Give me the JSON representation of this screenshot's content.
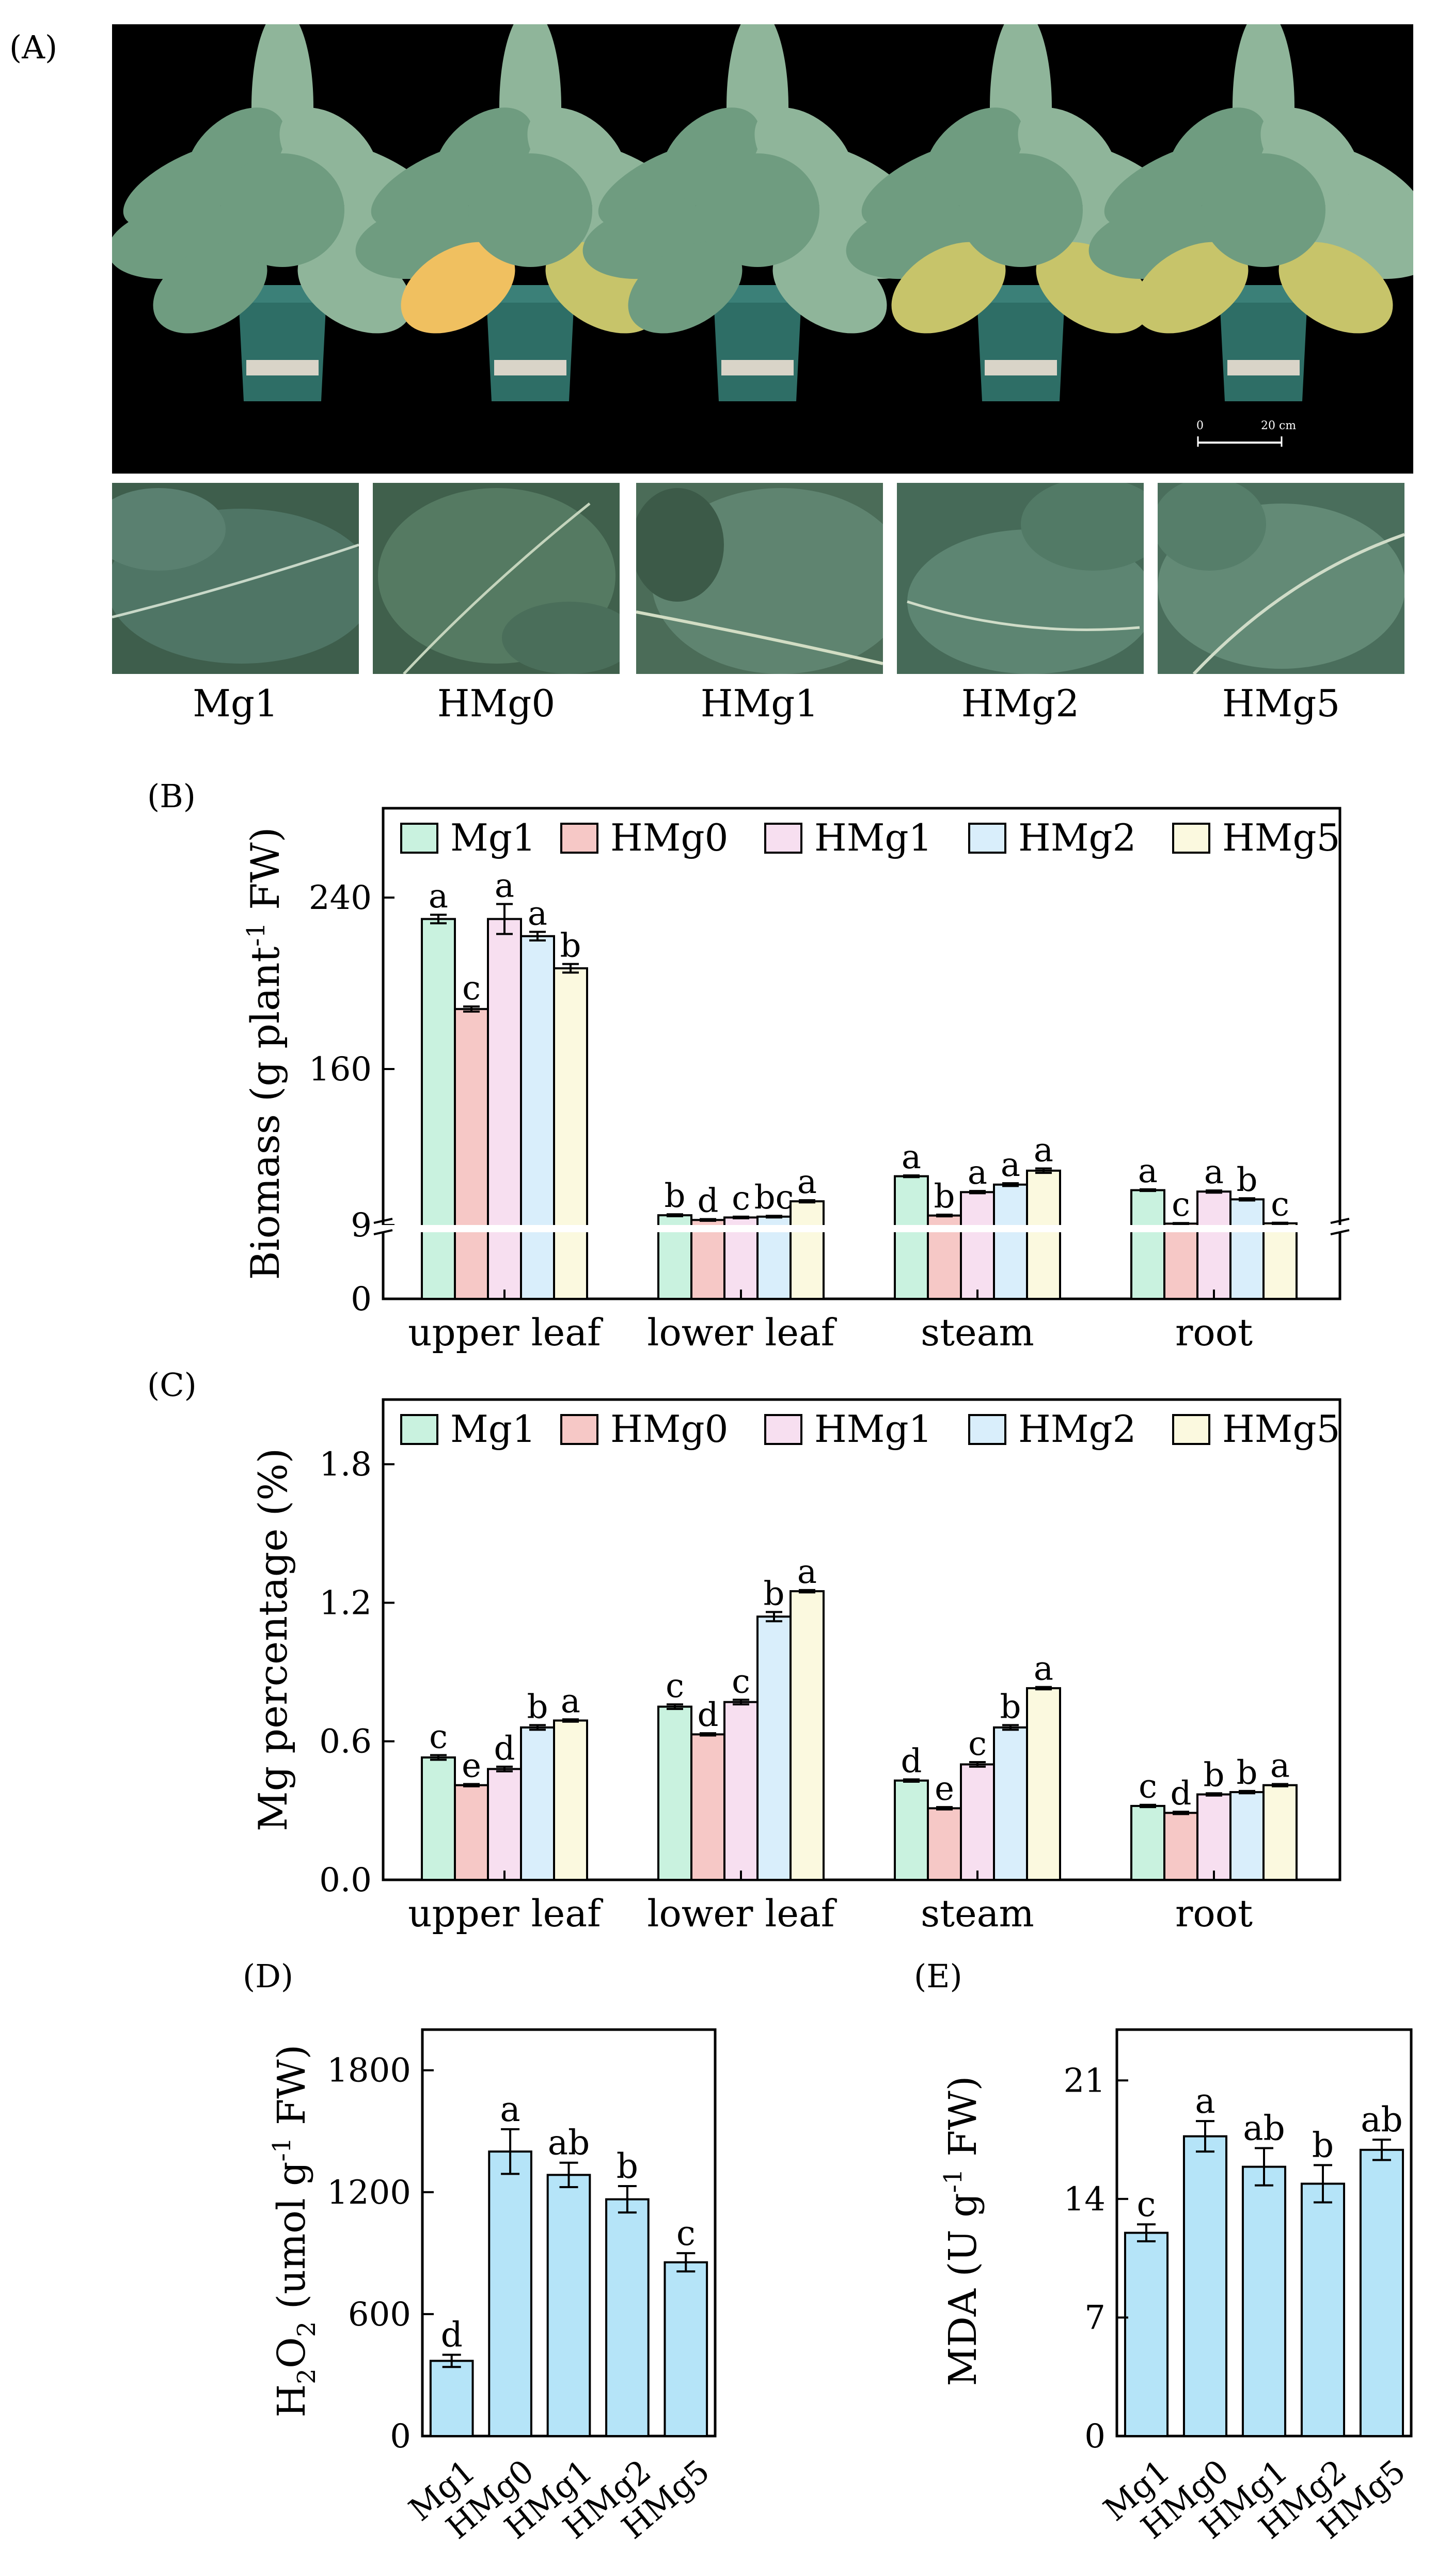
{
  "panel_labels": {
    "a": "(A)",
    "b": "(B)",
    "c": "(C)",
    "d": "(D)",
    "e": "(E)"
  },
  "photo": {
    "scale_start": "0",
    "scale_end": "20 cm",
    "labels": [
      "Mg1",
      "HMg0",
      "HMg1",
      "HMg2",
      "HMg5"
    ]
  },
  "series_colors": {
    "Mg1": "#c9f2df",
    "HMg0": "#f6c8c6",
    "HMg1": "#f7dff0",
    "HMg2": "#d9eefb",
    "HMg5": "#fbf9df",
    "bar_blue": "#b5e4f8"
  },
  "chart_data": [
    {
      "type": "bar",
      "panel": "(B)",
      "categories": [
        "upper leaf",
        "lower leaf",
        "steam",
        "root"
      ],
      "ylabel": "Biomass (g plant",
      "ylabel_sup": "-1",
      "ylabel_tail": " FW)",
      "yticks": [
        "0",
        "9",
        "160",
        "240"
      ],
      "broken_axis": true,
      "series": [
        {
          "name": "Mg1",
          "values": [
            230,
            12.5,
            26.5,
            21.5
          ],
          "errors": [
            2,
            0.35,
            0.3,
            0.3
          ],
          "letters": [
            "a",
            "b",
            "a",
            "a"
          ]
        },
        {
          "name": "HMg0",
          "values": [
            188,
            10.8,
            12.4,
            9.5
          ],
          "errors": [
            1.2,
            0.3,
            0.3,
            0.2
          ],
          "letters": [
            "c",
            "d",
            "b",
            "c"
          ]
        },
        {
          "name": "HMg1",
          "values": [
            230,
            11.7,
            20.8,
            21.0
          ],
          "errors": [
            7,
            0.3,
            0.4,
            0.4
          ],
          "letters": [
            "a",
            "c",
            "a",
            "a"
          ]
        },
        {
          "name": "HMg2",
          "values": [
            222,
            12.0,
            23.5,
            18.2
          ],
          "errors": [
            2,
            0.3,
            0.5,
            0.4
          ],
          "letters": [
            "a",
            "bc",
            "a",
            "b"
          ]
        },
        {
          "name": "HMg5",
          "values": [
            207,
            17.5,
            28.5,
            9.6
          ],
          "errors": [
            2,
            0.4,
            0.8,
            0.2
          ],
          "letters": [
            "b",
            "a",
            "a",
            "c"
          ]
        }
      ]
    },
    {
      "type": "bar",
      "panel": "(C)",
      "categories": [
        "upper leaf",
        "lower leaf",
        "steam",
        "root"
      ],
      "ylabel": "Mg percentage (%)",
      "yticks": [
        "0.0",
        "0.6",
        "1.2",
        "1.8"
      ],
      "ylim": [
        0,
        2.08
      ],
      "series": [
        {
          "name": "Mg1",
          "values": [
            0.53,
            0.75,
            0.43,
            0.32
          ],
          "errors": [
            0.01,
            0.01,
            0.005,
            0.005
          ],
          "letters": [
            "c",
            "c",
            "d",
            "c"
          ]
        },
        {
          "name": "HMg0",
          "values": [
            0.41,
            0.63,
            0.31,
            0.29
          ],
          "errors": [
            0.005,
            0.005,
            0.005,
            0.005
          ],
          "letters": [
            "e",
            "d",
            "e",
            "d"
          ]
        },
        {
          "name": "HMg1",
          "values": [
            0.48,
            0.77,
            0.5,
            0.37
          ],
          "errors": [
            0.01,
            0.01,
            0.01,
            0.005
          ],
          "letters": [
            "d",
            "c",
            "c",
            "b"
          ]
        },
        {
          "name": "HMg2",
          "values": [
            0.66,
            1.14,
            0.66,
            0.38
          ],
          "errors": [
            0.01,
            0.02,
            0.01,
            0.005
          ],
          "letters": [
            "b",
            "b",
            "b",
            "b"
          ]
        },
        {
          "name": "HMg5",
          "values": [
            0.69,
            1.25,
            0.83,
            0.41
          ],
          "errors": [
            0.005,
            0.005,
            0.005,
            0.005
          ],
          "letters": [
            "a",
            "a",
            "a",
            "a"
          ]
        }
      ]
    },
    {
      "type": "bar",
      "panel": "(D)",
      "categories": [
        "Mg1",
        "HMg0",
        "HMg1",
        "HMg2",
        "HMg5"
      ],
      "values": [
        370,
        1400,
        1285,
        1165,
        855
      ],
      "errors": [
        30,
        110,
        60,
        65,
        45
      ],
      "letters": [
        "d",
        "a",
        "ab",
        "b",
        "c"
      ],
      "ylabel_main": "H",
      "ylabel_sub": "2",
      "ylabel_mid": "O",
      "ylabel_sub2": "2",
      "ylabel_unit": " (umol g",
      "ylabel_sup": "-1",
      "ylabel_tail": " FW)",
      "yticks": [
        "0",
        "600",
        "1200",
        "1800"
      ],
      "ylim": [
        0,
        2000
      ]
    },
    {
      "type": "bar",
      "panel": "(E)",
      "categories": [
        "Mg1",
        "HMg0",
        "HMg1",
        "HMg2",
        "HMg5"
      ],
      "values": [
        12.0,
        17.7,
        15.9,
        14.9,
        16.9
      ],
      "errors": [
        0.5,
        0.9,
        1.1,
        1.1,
        0.6
      ],
      "letters": [
        "c",
        "a",
        "ab",
        "b",
        "ab"
      ],
      "ylabel": "MDA (U g",
      "ylabel_sup": "-1",
      "ylabel_tail": " FW)",
      "yticks": [
        "0",
        "7",
        "14",
        "21"
      ],
      "ylim": [
        0,
        24
      ]
    }
  ]
}
